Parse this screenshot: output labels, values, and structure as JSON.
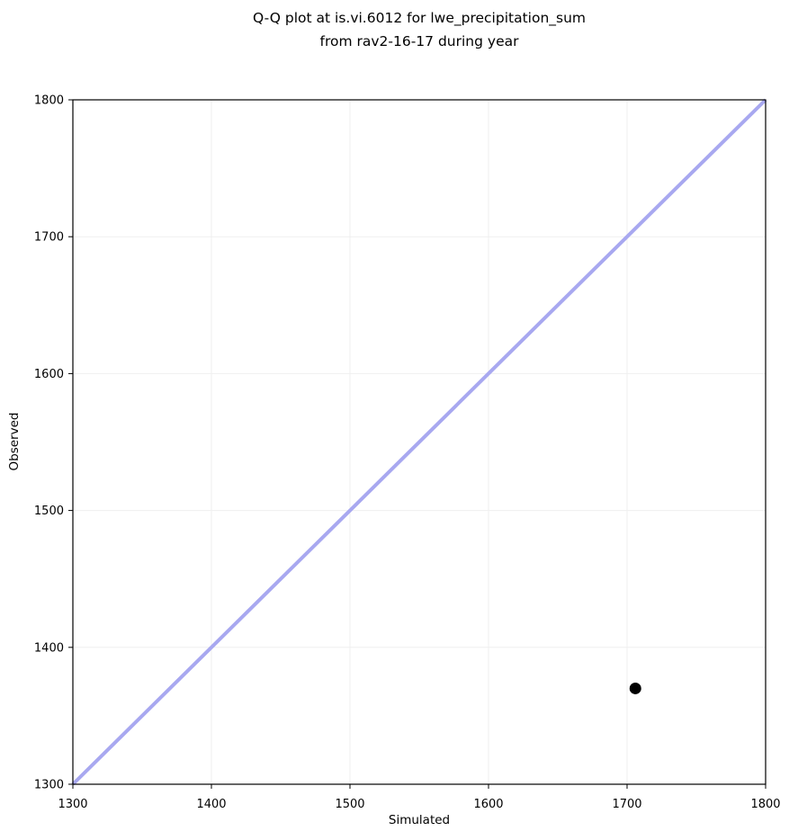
{
  "figure": {
    "title_line1": "Q-Q plot at is.vi.6012 for lwe_precipitation_sum",
    "title_line2": "from rav2-16-17 during year"
  },
  "chart_data": {
    "type": "scatter",
    "title": "Q-Q plot at is.vi.6012 for lwe_precipitation_sum\nfrom rav2-16-17 during year",
    "xlabel": "Simulated",
    "ylabel": "Observed",
    "xlim": [
      1300,
      1800
    ],
    "ylim": [
      1300,
      1800
    ],
    "xticks": [
      1300,
      1400,
      1500,
      1600,
      1700,
      1800
    ],
    "yticks": [
      1300,
      1400,
      1500,
      1600,
      1700,
      1800
    ],
    "grid": true,
    "legend": null,
    "background": "#ffffff",
    "grid_color": "#efefef",
    "axis_color": "#000000",
    "tick_label_color": "#000000",
    "series": [
      {
        "name": "identity-line",
        "type": "line",
        "color": "#a8a8f0",
        "width": 4,
        "points": [
          {
            "x": 1300,
            "y": 1300
          },
          {
            "x": 1800,
            "y": 1800
          }
        ]
      },
      {
        "name": "quantile-points",
        "type": "scatter",
        "color": "#000000",
        "marker_size": 13,
        "points": [
          {
            "x": 1706,
            "y": 1370
          }
        ]
      }
    ]
  }
}
